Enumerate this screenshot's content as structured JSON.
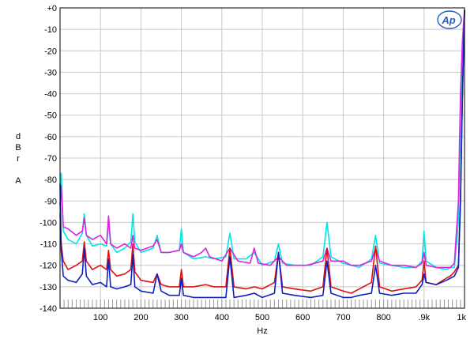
{
  "chart_data": {
    "type": "line",
    "title": "",
    "xlabel": "Hz",
    "ylabel": [
      "d",
      "B",
      "r",
      "",
      "A"
    ],
    "logo": "Ap",
    "xlim": [
      0,
      1000
    ],
    "ylim": [
      -140,
      0
    ],
    "x_ticks": [
      {
        "value": 100,
        "label": "100"
      },
      {
        "value": 200,
        "label": "200"
      },
      {
        "value": 300,
        "label": "300"
      },
      {
        "value": 400,
        "label": "400"
      },
      {
        "value": 500,
        "label": "500"
      },
      {
        "value": 600,
        "label": "600"
      },
      {
        "value": 700,
        "label": "700"
      },
      {
        "value": 800,
        "label": "800"
      },
      {
        "value": 900,
        "label": ".9k"
      },
      {
        "value": 1000,
        "label": "1k"
      }
    ],
    "y_ticks": [
      {
        "value": 0,
        "label": "+0"
      },
      {
        "value": -10,
        "label": "-10"
      },
      {
        "value": -20,
        "label": "-20"
      },
      {
        "value": -30,
        "label": "-30"
      },
      {
        "value": -40,
        "label": "-40"
      },
      {
        "value": -50,
        "label": "-50"
      },
      {
        "value": -60,
        "label": "-60"
      },
      {
        "value": -70,
        "label": "-70"
      },
      {
        "value": -80,
        "label": "-80"
      },
      {
        "value": -90,
        "label": "-90"
      },
      {
        "value": -100,
        "label": "-100"
      },
      {
        "value": -110,
        "label": "-110"
      },
      {
        "value": -120,
        "label": "-120"
      },
      {
        "value": -130,
        "label": "-130"
      },
      {
        "value": -140,
        "label": "-140"
      }
    ],
    "grid": true,
    "colors": {
      "grid": "#c8c8c8",
      "frame": "#000000",
      "logo": "#1f5fbf"
    },
    "series": [
      {
        "color": "#00e5e5",
        "x": [
          0,
          3,
          8,
          20,
          40,
          55,
          60,
          65,
          80,
          100,
          115,
          120,
          125,
          140,
          160,
          175,
          180,
          185,
          200,
          230,
          240,
          250,
          270,
          295,
          300,
          305,
          330,
          360,
          380,
          410,
          420,
          430,
          460,
          480,
          500,
          530,
          540,
          550,
          580,
          620,
          650,
          660,
          670,
          700,
          720,
          740,
          770,
          780,
          790,
          820,
          850,
          880,
          895,
          900,
          905,
          930,
          955,
          965,
          975,
          985,
          990,
          995,
          1000
        ],
        "y": [
          -92,
          -77,
          -104,
          -108,
          -110,
          -105,
          -96,
          -106,
          -111,
          -110,
          -111,
          -100,
          -110,
          -114,
          -112,
          -109,
          -96,
          -109,
          -114,
          -112,
          -106,
          -114,
          -114,
          -113,
          -103,
          -114,
          -117,
          -116,
          -117,
          -116,
          -105,
          -117,
          -117,
          -114,
          -120,
          -118,
          -110,
          -119,
          -120,
          -120,
          -116,
          -100,
          -116,
          -119,
          -120,
          -121,
          -117,
          -106,
          -119,
          -120,
          -121,
          -121,
          -118,
          -104,
          -118,
          -121,
          -122,
          -121,
          -121,
          -100,
          -50,
          -20,
          -1
        ]
      },
      {
        "color": "#dd22dd",
        "x": [
          0,
          3,
          8,
          20,
          40,
          55,
          60,
          65,
          80,
          100,
          115,
          120,
          125,
          140,
          160,
          175,
          180,
          185,
          200,
          230,
          240,
          250,
          270,
          295,
          300,
          305,
          330,
          350,
          360,
          370,
          400,
          420,
          440,
          470,
          480,
          490,
          520,
          540,
          560,
          590,
          610,
          650,
          660,
          670,
          700,
          720,
          740,
          770,
          780,
          790,
          820,
          850,
          880,
          895,
          900,
          905,
          930,
          955,
          965,
          975,
          985,
          990,
          995,
          1000
        ],
        "y": [
          -92,
          -83,
          -102,
          -103,
          -106,
          -104,
          -98,
          -106,
          -108,
          -106,
          -110,
          -97,
          -110,
          -112,
          -110,
          -112,
          -106,
          -112,
          -113,
          -111,
          -108,
          -114,
          -114,
          -113,
          -110,
          -114,
          -116,
          -114,
          -112,
          -116,
          -118,
          -112,
          -118,
          -119,
          -112,
          -119,
          -120,
          -116,
          -120,
          -120,
          -120,
          -118,
          -112,
          -118,
          -118,
          -120,
          -120,
          -118,
          -112,
          -118,
          -120,
          -120,
          -121,
          -119,
          -114,
          -120,
          -121,
          -121,
          -121,
          -119,
          -90,
          -40,
          -15,
          -1
        ]
      },
      {
        "color": "#e01010",
        "x": [
          0,
          3,
          8,
          20,
          40,
          55,
          60,
          65,
          80,
          100,
          115,
          120,
          125,
          140,
          160,
          175,
          180,
          185,
          200,
          230,
          240,
          250,
          270,
          295,
          300,
          305,
          330,
          360,
          380,
          410,
          420,
          430,
          460,
          480,
          500,
          530,
          540,
          550,
          580,
          620,
          650,
          660,
          670,
          700,
          720,
          740,
          770,
          780,
          790,
          820,
          850,
          880,
          895,
          900,
          905,
          930,
          955,
          965,
          975,
          985,
          990,
          995,
          1000
        ],
        "y": [
          -96,
          -110,
          -118,
          -122,
          -120,
          -118,
          -109,
          -118,
          -122,
          -120,
          -122,
          -113,
          -122,
          -125,
          -124,
          -122,
          -110,
          -123,
          -127,
          -128,
          -124,
          -129,
          -130,
          -130,
          -122,
          -130,
          -130,
          -129,
          -130,
          -130,
          -112,
          -130,
          -131,
          -130,
          -131,
          -128,
          -114,
          -130,
          -131,
          -132,
          -130,
          -112,
          -130,
          -132,
          -133,
          -131,
          -128,
          -111,
          -130,
          -132,
          -131,
          -130,
          -127,
          -118,
          -128,
          -129,
          -126,
          -125,
          -123,
          -120,
          -90,
          -40,
          -1
        ]
      },
      {
        "color": "#1020c0",
        "x": [
          0,
          3,
          8,
          20,
          40,
          55,
          60,
          65,
          80,
          100,
          115,
          120,
          125,
          140,
          160,
          175,
          180,
          185,
          200,
          230,
          240,
          250,
          270,
          295,
          300,
          305,
          330,
          360,
          380,
          410,
          420,
          430,
          460,
          480,
          500,
          530,
          540,
          550,
          580,
          620,
          650,
          660,
          670,
          700,
          720,
          740,
          770,
          780,
          790,
          820,
          850,
          880,
          895,
          900,
          905,
          930,
          955,
          965,
          975,
          985,
          990,
          995,
          1000
        ],
        "y": [
          -82,
          -113,
          -125,
          -127,
          -128,
          -124,
          -112,
          -125,
          -129,
          -128,
          -130,
          -117,
          -130,
          -131,
          -130,
          -129,
          -115,
          -130,
          -132,
          -133,
          -124,
          -132,
          -134,
          -134,
          -126,
          -134,
          -135,
          -135,
          -135,
          -135,
          -116,
          -135,
          -134,
          -133,
          -135,
          -133,
          -114,
          -133,
          -134,
          -135,
          -134,
          -118,
          -133,
          -135,
          -135,
          -134,
          -133,
          -120,
          -133,
          -134,
          -133,
          -133,
          -129,
          -124,
          -128,
          -129,
          -127,
          -126,
          -125,
          -121,
          -90,
          -40,
          -1
        ]
      }
    ]
  }
}
